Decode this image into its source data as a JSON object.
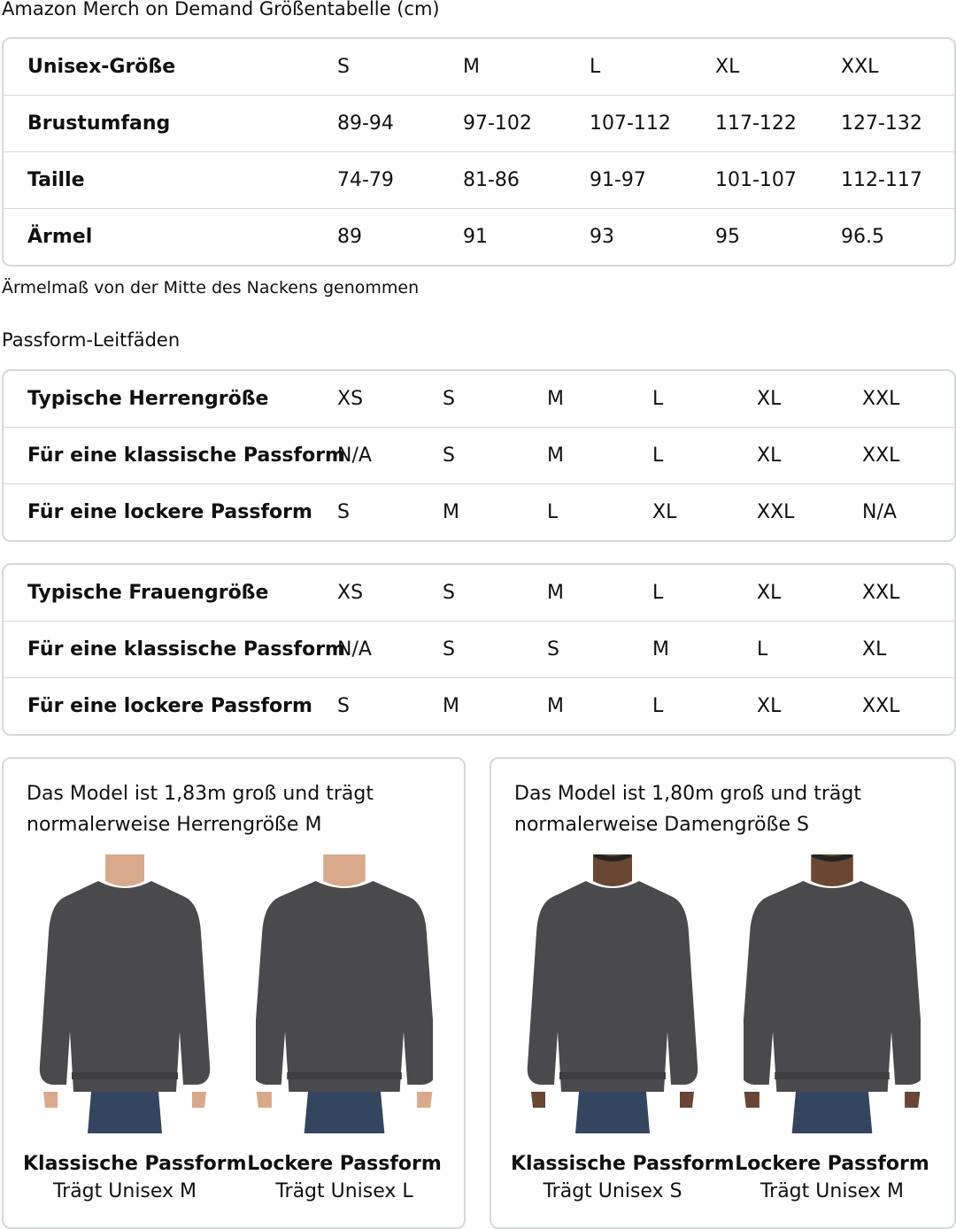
{
  "title": "Amazon Merch on Demand Größentabelle (cm)",
  "size_table": {
    "rows": [
      {
        "label": "Unisex-Größe",
        "values": [
          "S",
          "M",
          "L",
          "XL",
          "XXL"
        ]
      },
      {
        "label": "Brustumfang",
        "values": [
          "89-94",
          "97-102",
          "107-112",
          "117-122",
          "127-132"
        ]
      },
      {
        "label": "Taille",
        "values": [
          "74-79",
          "81-86",
          "91-97",
          "101-107",
          "112-117"
        ]
      },
      {
        "label": "Ärmel",
        "values": [
          "89",
          "91",
          "93",
          "95",
          "96.5"
        ]
      }
    ]
  },
  "note": "Ärmelmaß von der Mitte des Nackens genommen",
  "fit_heading": "Passform-Leitfäden",
  "men_table": {
    "rows": [
      {
        "label": "Typische Herrengröße",
        "values": [
          "XS",
          "S",
          "M",
          "L",
          "XL",
          "XXL"
        ]
      },
      {
        "label": "Für eine klassische Passform",
        "values": [
          "N/A",
          "S",
          "M",
          "L",
          "XL",
          "XXL"
        ]
      },
      {
        "label": "Für eine lockere Passform",
        "values": [
          "S",
          "M",
          "L",
          "XL",
          "XXL",
          "N/A"
        ]
      }
    ]
  },
  "women_table": {
    "rows": [
      {
        "label": "Typische Frauengröße",
        "values": [
          "XS",
          "S",
          "M",
          "L",
          "XL",
          "XXL"
        ]
      },
      {
        "label": "Für eine klassische Passform",
        "values": [
          "N/A",
          "S",
          "S",
          "M",
          "L",
          "XL"
        ]
      },
      {
        "label": "Für eine lockere Passform",
        "values": [
          "S",
          "M",
          "M",
          "L",
          "XL",
          "XXL"
        ]
      }
    ]
  },
  "cards": [
    {
      "line1": "Das Model ist 1,83m groß und trägt",
      "line2": "normalerweise Herrengröße M",
      "figures": [
        {
          "title": "Klassische Passform",
          "sub": "Trägt Unisex M"
        },
        {
          "title": "Lockere Passform",
          "sub": "Trägt Unisex L"
        }
      ]
    },
    {
      "line1": "Das Model ist 1,80m groß und trägt",
      "line2": "normalerweise Damengröße S",
      "figures": [
        {
          "title": "Klassische Passform",
          "sub": "Trägt Unisex S"
        },
        {
          "title": "Lockere Passform",
          "sub": "Trägt Unisex M"
        }
      ]
    }
  ],
  "colors": {
    "sweatshirt": "#4a4a4c",
    "jeans": "#33455f",
    "border": "#d5d9d9"
  }
}
